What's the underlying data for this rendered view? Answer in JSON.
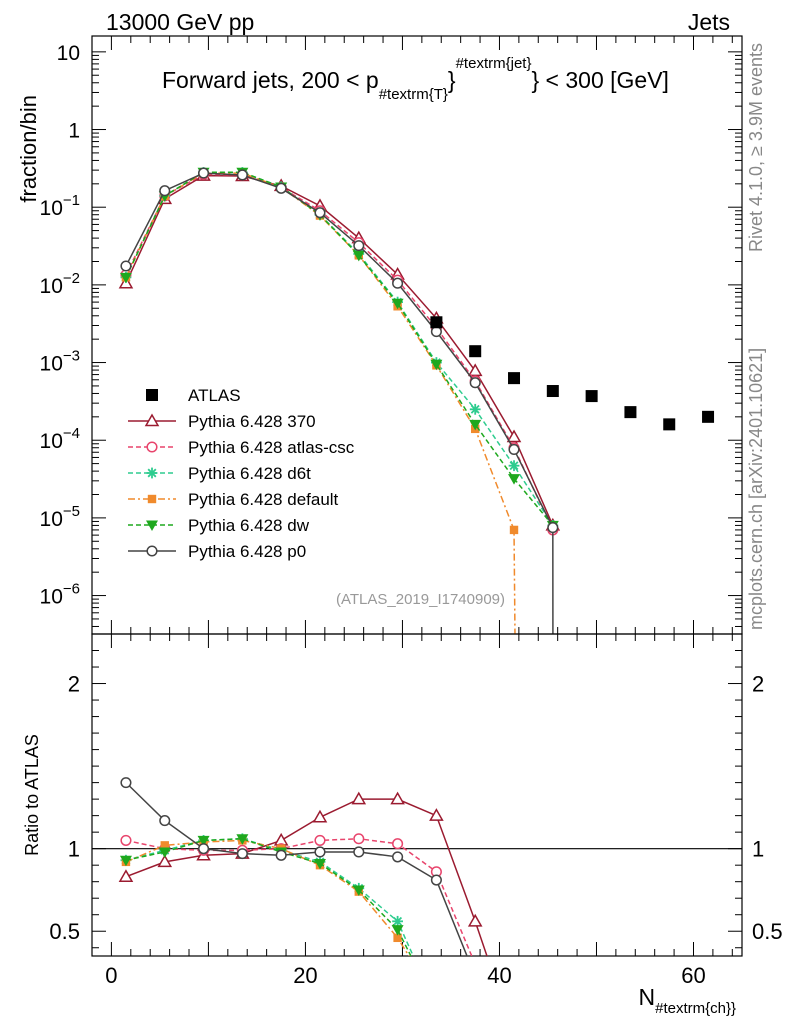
{
  "header": {
    "energy": "13000 GeV pp",
    "category": "Jets",
    "side_version": "Rivet 4.1.0, ≥ 3.9M events",
    "side_source": "mcplots.cern.ch [arXiv:2401.10621]"
  },
  "chart_data": {
    "type": "line",
    "title": "Forward jets, 200 < p_{#textrm{T}}^{#textrm{jet}} < 300 [GeV]",
    "title_parts": {
      "pre": "Forward jets, 200 < p",
      "sub": "#textrm{T}",
      "brace": "}",
      "sup": "#textrm{jet}",
      "post": "} < 300 [GeV]"
    },
    "analysis_id": "(ATLAS_2019_I1740909)",
    "xlabel_main": "N",
    "xlabel_sub": "#textrm{ch}}",
    "ylabel": "fraction/bin",
    "ratio_ylabel": "Ratio to ATLAS",
    "xlim": [
      -2,
      65
    ],
    "ylim_log": [
      3.2e-07,
      16
    ],
    "ratio_ylim": [
      0.35,
      2.3
    ],
    "x_ticks": [
      0,
      20,
      40,
      60
    ],
    "y_tick_labels": [
      {
        "v": 10,
        "m": "10",
        "e": ""
      },
      {
        "v": 1,
        "m": "1",
        "e": ""
      },
      {
        "v": 0.1,
        "m": "10",
        "e": "−1"
      },
      {
        "v": 0.01,
        "m": "10",
        "e": "−2"
      },
      {
        "v": 0.001,
        "m": "10",
        "e": "−3"
      },
      {
        "v": 0.0001,
        "m": "10",
        "e": "−4"
      },
      {
        "v": 1e-05,
        "m": "10",
        "e": "−5"
      },
      {
        "v": 1e-06,
        "m": "10",
        "e": "−6"
      }
    ],
    "ratio_ticks": [
      {
        "v": 0.5,
        "label": "0.5"
      },
      {
        "v": 1,
        "label": "1"
      },
      {
        "v": 2,
        "label": "2"
      }
    ],
    "data": {
      "name": "ATLAS",
      "x": [
        33.5,
        37.5,
        41.5,
        45.5,
        49.5,
        53.5,
        57.5,
        61.5
      ],
      "y": [
        0.0033,
        0.0014,
        0.00063,
        0.00043,
        0.00037,
        0.00023,
        0.00016,
        0.0002
      ]
    },
    "series": [
      {
        "name": "Pythia 6.428 370",
        "color": "#9b1b30",
        "marker": "triangle-open",
        "dash": "",
        "x": [
          1.5,
          5.5,
          9.5,
          13.5,
          17.5,
          21.5,
          25.5,
          29.5,
          33.5,
          37.5,
          41.5,
          45.5
        ],
        "y": [
          0.0105,
          0.128,
          0.255,
          0.252,
          0.188,
          0.104,
          0.04,
          0.0136,
          0.0037,
          0.00078,
          0.00011,
          8e-06
        ],
        "ratio_x": [
          1.5,
          5.5,
          9.5,
          13.5,
          17.5,
          21.5,
          25.5,
          29.5,
          33.5,
          37.5,
          39
        ],
        "ratio": [
          0.83,
          0.92,
          0.96,
          0.97,
          1.05,
          1.19,
          1.3,
          1.3,
          1.2,
          0.56,
          0.3
        ]
      },
      {
        "name": "Pythia 6.428 atlas-csc",
        "color": "#e8446c",
        "marker": "circle-open",
        "dash": "5,3",
        "x": [
          1.5,
          5.5,
          9.5,
          13.5,
          17.5,
          21.5,
          25.5,
          29.5,
          33.5,
          37.5,
          41.5,
          45.5
        ],
        "y": [
          0.0135,
          0.14,
          0.265,
          0.26,
          0.18,
          0.09,
          0.035,
          0.0115,
          0.0028,
          0.00058,
          8e-05,
          7e-06
        ],
        "ratio_x": [
          1.5,
          5.5,
          9.5,
          13.5,
          17.5,
          21.5,
          25.5,
          29.5,
          33.5,
          37.5
        ],
        "ratio": [
          1.05,
          1.0,
          0.99,
          0.99,
          1.0,
          1.05,
          1.06,
          1.03,
          0.86,
          0.3
        ]
      },
      {
        "name": "Pythia 6.428 d6t",
        "color": "#2ecc8f",
        "marker": "star",
        "dash": "5,3",
        "x": [
          1.5,
          5.5,
          9.5,
          13.5,
          17.5,
          21.5,
          25.5,
          29.5,
          33.5,
          37.5,
          41.5,
          45.5
        ],
        "y": [
          0.0125,
          0.14,
          0.28,
          0.28,
          0.183,
          0.08,
          0.025,
          0.006,
          0.001,
          0.00025,
          4.7e-05,
          8e-06
        ],
        "ratio_x": [
          1.5,
          5.5,
          9.5,
          13.5,
          17.5,
          21.5,
          25.5,
          29.5,
          31.5
        ],
        "ratio": [
          0.93,
          0.99,
          1.05,
          1.06,
          0.99,
          0.92,
          0.76,
          0.56,
          0.3
        ]
      },
      {
        "name": "Pythia 6.428 default",
        "color": "#f08a2c",
        "marker": "square",
        "dash": "7,3,2,3",
        "x": [
          1.5,
          5.5,
          9.5,
          13.5,
          17.5,
          21.5,
          25.5,
          29.5,
          33.5,
          37.5,
          41.5,
          41.6
        ],
        "y": [
          0.0125,
          0.14,
          0.275,
          0.275,
          0.18,
          0.078,
          0.024,
          0.0053,
          0.00092,
          0.00014,
          7e-06,
          3.2e-07
        ],
        "ratio_x": [
          1.5,
          5.5,
          9.5,
          13.5,
          17.5,
          21.5,
          25.5,
          29.5,
          31.2
        ],
        "ratio": [
          0.92,
          1.02,
          1.04,
          1.05,
          1.0,
          0.9,
          0.74,
          0.46,
          0.3
        ]
      },
      {
        "name": "Pythia 6.428 dw",
        "color": "#1ea81e",
        "marker": "triangle-down",
        "dash": "5,3",
        "x": [
          1.5,
          5.5,
          9.5,
          13.5,
          17.5,
          21.5,
          25.5,
          29.5,
          33.5,
          37.5,
          41.5,
          45.5
        ],
        "y": [
          0.0125,
          0.14,
          0.282,
          0.282,
          0.182,
          0.08,
          0.024,
          0.0058,
          0.00095,
          0.00016,
          3.2e-05,
          8e-06
        ],
        "ratio_x": [
          1.5,
          5.5,
          9.5,
          13.5,
          17.5,
          21.5,
          25.5,
          29.5,
          31.3
        ],
        "ratio": [
          0.93,
          0.98,
          1.05,
          1.06,
          0.98,
          0.91,
          0.75,
          0.51,
          0.3
        ]
      },
      {
        "name": "Pythia 6.428 p0",
        "color": "#444444",
        "marker": "circle-open",
        "dash": "",
        "x": [
          1.5,
          5.5,
          9.5,
          13.5,
          17.5,
          21.5,
          25.5,
          29.5,
          33.5,
          37.5,
          41.5,
          45.5,
          45.51
        ],
        "y": [
          0.0175,
          0.163,
          0.275,
          0.26,
          0.175,
          0.085,
          0.032,
          0.0105,
          0.0025,
          0.00055,
          7.6e-05,
          7.5e-06,
          3.2e-07
        ],
        "ratio_x": [
          1.5,
          5.5,
          9.5,
          13.5,
          17.5,
          21.5,
          25.5,
          29.5,
          33.5,
          37
        ],
        "ratio": [
          1.4,
          1.17,
          1.0,
          0.97,
          0.96,
          0.98,
          0.98,
          0.95,
          0.81,
          0.3
        ]
      }
    ]
  }
}
